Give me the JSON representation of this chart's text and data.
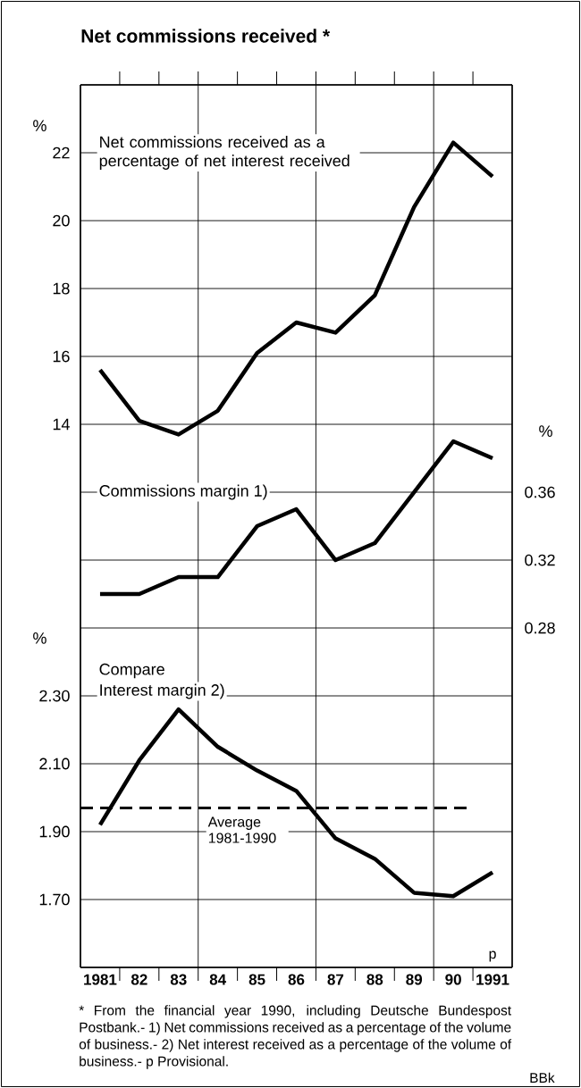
{
  "chart_data": [
    {
      "type": "line",
      "title": "Net commissions received *",
      "ylabel": "%",
      "categories": [
        "1981",
        "82",
        "83",
        "84",
        "85",
        "86",
        "87",
        "88",
        "89",
        "90",
        "1991"
      ],
      "series": [
        {
          "name": "Net commissions received as a percentage of net interest received",
          "color": "#000000",
          "values": [
            15.6,
            14.1,
            13.7,
            14.4,
            16.1,
            17.0,
            16.7,
            17.8,
            20.4,
            22.3,
            21.3
          ]
        }
      ],
      "ylim": [
        -2,
        24
      ],
      "yticks": [
        14,
        16,
        18,
        20,
        22
      ],
      "grid": true,
      "tick_labels": "y"
    },
    {
      "type": "line",
      "y2label": "%",
      "categories": [
        "1981",
        "82",
        "83",
        "84",
        "85",
        "86",
        "87",
        "88",
        "89",
        "90",
        "1991"
      ],
      "series": [
        {
          "name": "Commissions margin 1)",
          "color": "#000000",
          "axis": "y2",
          "values": [
            0.3,
            0.3,
            0.31,
            0.31,
            0.34,
            0.35,
            0.32,
            0.33,
            0.36,
            0.39,
            0.38
          ]
        }
      ],
      "y2lim": [
        0.08,
        0.6
      ],
      "y2ticks": [
        0.28,
        0.32,
        0.36
      ],
      "grid": true,
      "tick_labels": "y"
    },
    {
      "type": "line",
      "ylabel": "%",
      "categories": [
        "1981",
        "82",
        "83",
        "84",
        "85",
        "86",
        "87",
        "88",
        "89",
        "90",
        "1991"
      ],
      "series": [
        {
          "name": "Interest margin 2)",
          "color": "#000000",
          "values": [
            1.92,
            2.11,
            2.26,
            2.15,
            2.08,
            2.02,
            1.88,
            1.82,
            1.72,
            1.71,
            1.78
          ]
        }
      ],
      "ylim": [
        1.5,
        4.1
      ],
      "yticks": [
        {
          "value": 1.7,
          "label": "1.70"
        },
        {
          "value": 1.9,
          "label": "1.90"
        },
        {
          "value": 2.1,
          "label": "2.10"
        },
        {
          "value": 2.3,
          "label": "2.30"
        }
      ],
      "ref_lines": [
        {
          "axis": "y",
          "value": 1.97,
          "label": "Average 1981-1990",
          "line_style": "dashed",
          "color": "#000000"
        }
      ],
      "annotations": [
        "Compare",
        "p",
        "* From the financial year 1990, including Deutsche Bundespost Postbank.- 1) Net commissions received as a percentage of the volume of business.- 2) Net interest received as a percentage of the volume of business.- p Provisional.",
        "BBk"
      ],
      "grid": true
    }
  ]
}
